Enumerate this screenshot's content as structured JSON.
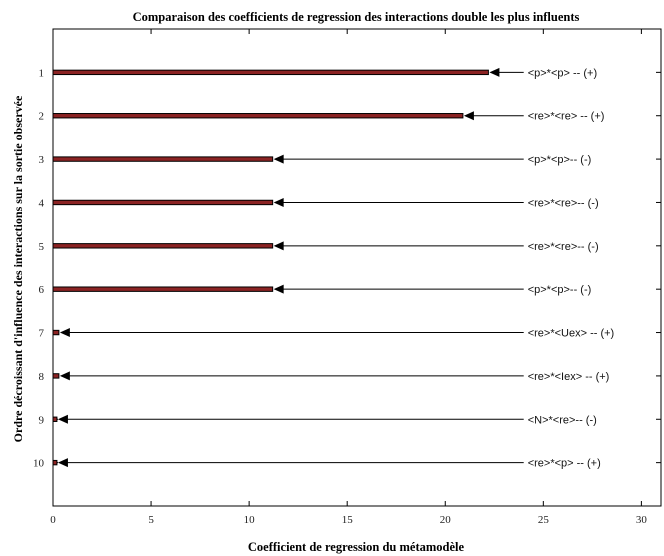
{
  "chart_data": {
    "type": "bar",
    "orientation": "horizontal",
    "title": "Comparaison des coefficients de regression des interactions double les plus influents",
    "xlabel": "Coefficient de regression du métamodèle",
    "ylabel": "Ordre décroissant d'influence des interactions sur la sortie observée",
    "xlim": [
      0,
      31
    ],
    "xticks": [
      0,
      5,
      10,
      15,
      20,
      25,
      30
    ],
    "ylim": [
      0,
      11
    ],
    "categories": [
      "1",
      "2",
      "3",
      "4",
      "5",
      "6",
      "7",
      "8",
      "9",
      "10"
    ],
    "values": [
      22.2,
      20.9,
      11.2,
      11.2,
      11.2,
      11.2,
      0.3,
      0.3,
      0.2,
      0.2
    ],
    "annotations": [
      "<p>*<p> -- (+)",
      "<re>*<re> -- (+)",
      "<p>*<p>-- (-)",
      "<re>*<re>-- (-)",
      "<re>*<re>-- (-)",
      "<p>*<p>-- (-)",
      "<re>*<Uex> -- (+)",
      "<re>*<Iex> -- (+)",
      "<N>*<re>-- (-)",
      "<re>*<p> -- (+)"
    ],
    "annotation_x": 24,
    "grid": false,
    "colors": {
      "bar_fill": "#8b2323",
      "bar_edge": "#000000",
      "arrow": "#000000",
      "axis": "#000000"
    }
  }
}
